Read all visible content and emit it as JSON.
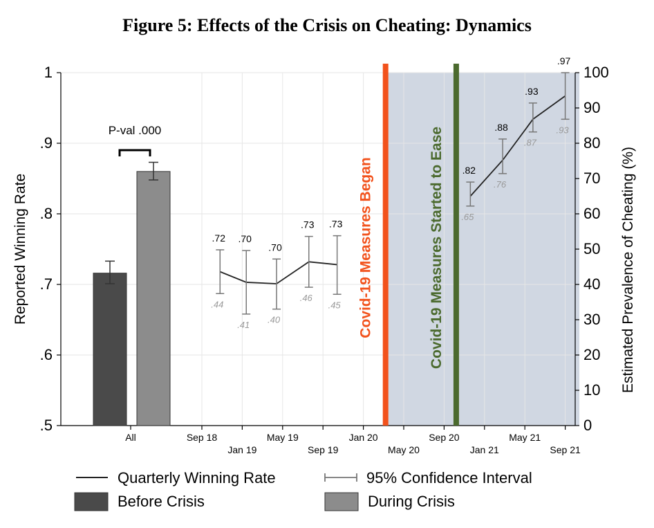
{
  "title": "Figure 5: Effects of the Crisis on Cheating: Dynamics",
  "chart_data": {
    "type": "bar+line",
    "ylabel_left": "Reported Winning Rate",
    "ylabel_right": "Estimated Prevalence of Cheating (%)",
    "ylim_left": [
      0.5,
      1.0
    ],
    "ylim_right": [
      0,
      100
    ],
    "yticks_left": [
      ".5",
      ".6",
      ".7",
      ".8",
      ".9",
      "1"
    ],
    "yticks_left_values": [
      0.5,
      0.6,
      0.7,
      0.8,
      0.9,
      1.0
    ],
    "yticks_right": [
      "0",
      "10",
      "20",
      "30",
      "40",
      "50",
      "60",
      "70",
      "80",
      "90",
      "100"
    ],
    "yticks_right_values": [
      0,
      10,
      20,
      30,
      40,
      50,
      60,
      70,
      80,
      90,
      100
    ],
    "x_ticks": [
      {
        "label": "All",
        "t": -6.2,
        "row": 0
      },
      {
        "label": "Sep 18",
        "t": 0,
        "row": 0
      },
      {
        "label": "Jan 19",
        "t": 1,
        "row": 1
      },
      {
        "label": "May 19",
        "t": 2,
        "row": 0
      },
      {
        "label": "Sep 19",
        "t": 3,
        "row": 1
      },
      {
        "label": "Jan 20",
        "t": 4,
        "row": 0
      },
      {
        "label": "May 20",
        "t": 5,
        "row": 1
      },
      {
        "label": "Sep 20",
        "t": 6,
        "row": 0
      },
      {
        "label": "Jan 21",
        "t": 7,
        "row": 1
      },
      {
        "label": "May 21",
        "t": 8,
        "row": 0
      },
      {
        "label": "Sep 21",
        "t": 9,
        "row": 1
      }
    ],
    "bars": [
      {
        "name": "Before Crisis",
        "value": 0.716,
        "ci": [
          0.701,
          0.733
        ],
        "color": "#4a4a4a",
        "t": -7.3
      },
      {
        "name": "During Crisis",
        "value": 0.86,
        "ci": [
          0.848,
          0.873
        ],
        "color": "#8c8c8c",
        "t": -6.2
      }
    ],
    "p_value_label": "P-val .000",
    "series": [
      {
        "name": "Quarterly Winning Rate",
        "segment": "pre-crisis",
        "t": [
          0.45,
          1.1,
          1.85,
          2.65,
          3.35
        ],
        "values": [
          0.718,
          0.703,
          0.701,
          0.732,
          0.728
        ],
        "ci_low": [
          0.687,
          0.658,
          0.665,
          0.696,
          0.686
        ],
        "ci_high": [
          0.749,
          0.748,
          0.736,
          0.768,
          0.769
        ],
        "labels": [
          ".72",
          ".70",
          ".70",
          ".73",
          ".73"
        ],
        "prevalence_labels": [
          ".44",
          ".41",
          ".40",
          ".46",
          ".45"
        ]
      },
      {
        "name": "Quarterly Winning Rate",
        "segment": "crisis",
        "t": [
          6.65,
          7.45,
          8.2,
          9.0
        ],
        "values": [
          0.825,
          0.876,
          0.934,
          0.967
        ],
        "ci_low": [
          0.811,
          0.857,
          0.916,
          0.934
        ],
        "ci_high": [
          0.845,
          0.906,
          0.957,
          1.0
        ],
        "labels": [
          ".82",
          ".88",
          ".93",
          ".97"
        ],
        "prevalence_labels": [
          ".65",
          ".76",
          ".87",
          ".93"
        ]
      }
    ],
    "shaded_region": {
      "t_start": 4.55,
      "t_end": 9.35,
      "color": "#d0d7e2"
    },
    "event_lines": [
      {
        "label": "Covid-19 Measures Began",
        "t": 4.55,
        "color": "#f2521c"
      },
      {
        "label": "Covid-19 Measures Started to Ease",
        "t": 6.3,
        "color": "#4b6a2e"
      }
    ],
    "legend": [
      {
        "label": "Quarterly Winning Rate",
        "kind": "line"
      },
      {
        "label": "95% Confidence Interval",
        "kind": "ci"
      },
      {
        "label": "Before Crisis",
        "kind": "box",
        "color": "#4a4a4a"
      },
      {
        "label": "During Crisis",
        "kind": "box",
        "color": "#8c8c8c"
      }
    ]
  }
}
